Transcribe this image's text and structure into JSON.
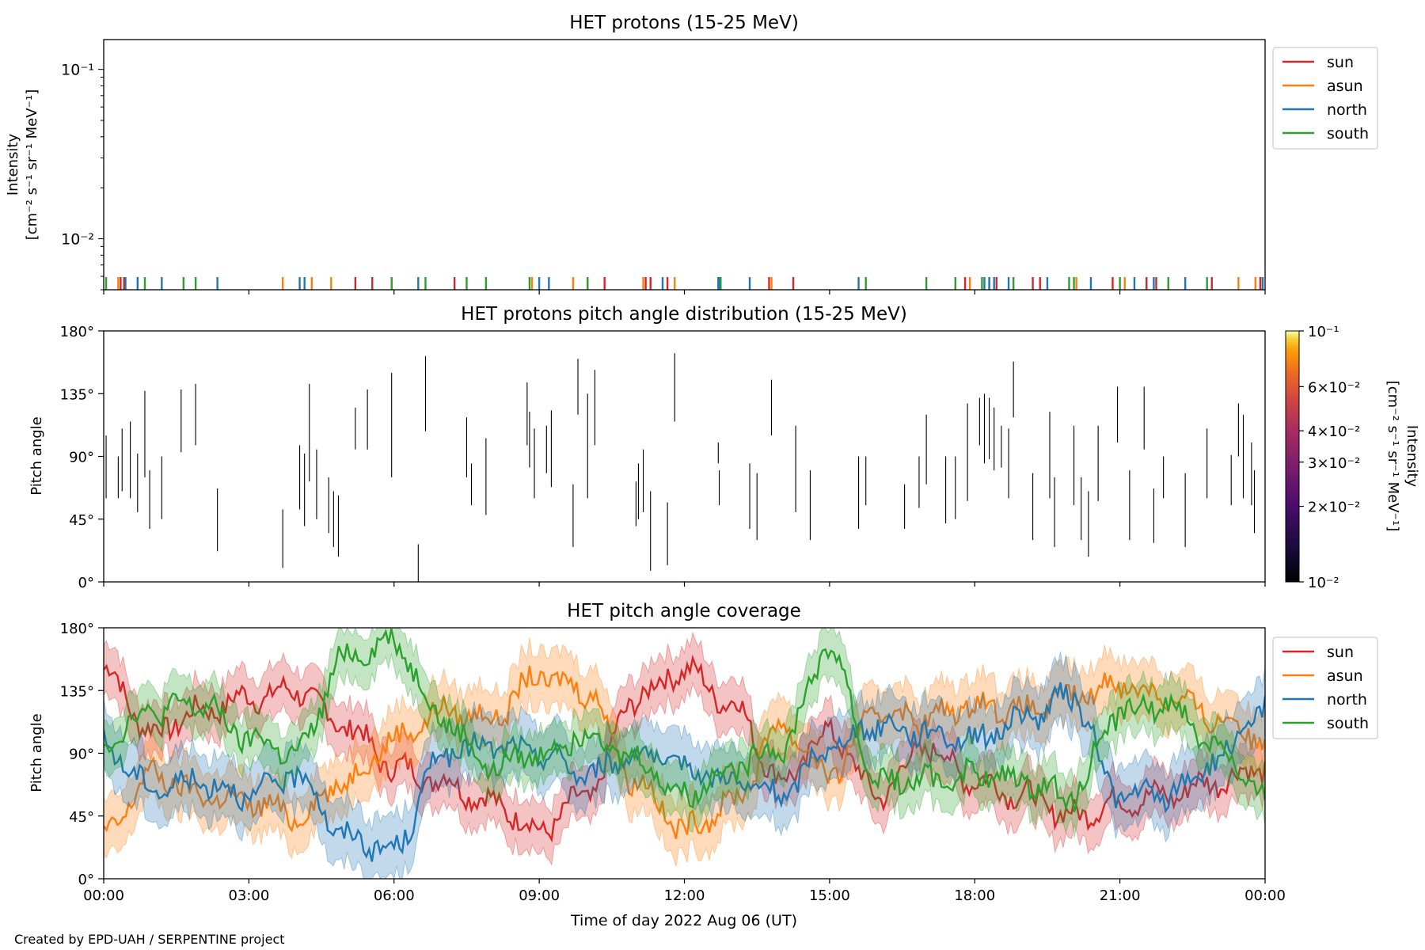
{
  "credit": "Created by EPD-UAH / SERPENTINE project",
  "colors": {
    "sun": "#d62728",
    "asun": "#ff7f0e",
    "north": "#1f77b4",
    "south": "#2ca02c"
  },
  "chart_data": [
    {
      "type": "line",
      "title": "HET protons (15-25 MeV)",
      "ylabel": "Intensity",
      "ylabel_unit": "[cm⁻² s⁻¹ sr⁻¹ MeV⁻¹]",
      "yscale": "log",
      "ylim": [
        0.005,
        0.15
      ],
      "yticks": [
        {
          "value": 0.1,
          "label": "10⁻¹"
        },
        {
          "value": 0.01,
          "label": "10⁻²"
        }
      ],
      "xlim": [
        "00:00",
        "24:00"
      ],
      "legend": {
        "position": "right",
        "entries": [
          "sun",
          "asun",
          "north",
          "south"
        ]
      },
      "series": [
        {
          "name": "sun",
          "ticks_hours": [
            0.35,
            0.42,
            5.2,
            5.55,
            7.25,
            10.35,
            11.2,
            11.3,
            11.65,
            13.75,
            14.25,
            17.8,
            18.45,
            19.2,
            19.35,
            20.85,
            21.55,
            21.75,
            22.9,
            23.9,
            23.95
          ]
        },
        {
          "name": "asun",
          "ticks_hours": [
            0.3,
            3.7,
            4.3,
            4.7,
            5.95,
            8.85,
            9.7,
            10.0,
            11.15,
            11.8,
            13.8,
            17.9,
            18.3,
            20.1,
            21.1,
            23.45,
            23.8
          ]
        },
        {
          "name": "north",
          "ticks_hours": [
            0.45,
            0.7,
            1.2,
            2.35,
            4.05,
            4.15,
            6.5,
            9.0,
            9.2,
            11.55,
            12.7,
            12.72,
            13.35,
            15.6,
            18.2,
            18.3,
            18.4,
            18.7,
            19.5,
            20.4,
            21.3,
            21.7,
            22.35,
            23.95
          ]
        },
        {
          "name": "south",
          "ticks_hours": [
            0.05,
            0.85,
            1.65,
            1.9,
            5.95,
            6.65,
            7.5,
            7.9,
            8.8,
            10.0,
            12.75,
            15.75,
            17.0,
            17.6,
            18.15,
            18.8,
            19.95,
            20.05,
            21.0,
            22.0,
            22.8
          ]
        }
      ]
    },
    {
      "type": "heatmap",
      "title": "HET protons pitch angle distribution (15-25 MeV)",
      "ylabel": "Pitch angle",
      "ylim": [
        0,
        180
      ],
      "yticks": [
        "0°",
        "45°",
        "90°",
        "135°",
        "180°"
      ],
      "xlim": [
        "00:00",
        "24:00"
      ],
      "colorbar": {
        "label": "Intensity",
        "unit": "[cm⁻² s⁻¹ sr⁻¹ MeV⁻¹]",
        "scale": "log",
        "range": [
          0.01,
          0.1
        ],
        "colormap": "inferno",
        "ticks": [
          {
            "value": 0.1,
            "label": "10⁻¹"
          },
          {
            "value": 0.06,
            "label": "6×10⁻²"
          },
          {
            "value": 0.04,
            "label": "4×10⁻²"
          },
          {
            "value": 0.03,
            "label": "3×10⁻²"
          },
          {
            "value": 0.02,
            "label": "2×10⁻²"
          },
          {
            "value": 0.01,
            "label": "10⁻²"
          }
        ]
      },
      "segments": [
        [
          0.05,
          60,
          105
        ],
        [
          0.3,
          60,
          90
        ],
        [
          0.38,
          65,
          110
        ],
        [
          0.55,
          60,
          115
        ],
        [
          0.7,
          50,
          92
        ],
        [
          0.85,
          75,
          137
        ],
        [
          0.95,
          38,
          80
        ],
        [
          1.2,
          45,
          90
        ],
        [
          1.6,
          93,
          138
        ],
        [
          1.9,
          98,
          142
        ],
        [
          2.35,
          22,
          67
        ],
        [
          3.7,
          10,
          52
        ],
        [
          4.05,
          52,
          98
        ],
        [
          4.15,
          40,
          92
        ],
        [
          4.25,
          72,
          142
        ],
        [
          4.4,
          45,
          95
        ],
        [
          4.65,
          35,
          75
        ],
        [
          4.75,
          25,
          65
        ],
        [
          4.85,
          18,
          62
        ],
        [
          5.2,
          95,
          125
        ],
        [
          5.45,
          95,
          138
        ],
        [
          5.95,
          75,
          150
        ],
        [
          6.5,
          0,
          27
        ],
        [
          6.65,
          108,
          162
        ],
        [
          7.5,
          75,
          118
        ],
        [
          7.6,
          55,
          85
        ],
        [
          7.9,
          48,
          103
        ],
        [
          8.75,
          98,
          143
        ],
        [
          8.8,
          82,
          122
        ],
        [
          8.9,
          60,
          110
        ],
        [
          9.15,
          78,
          112
        ],
        [
          9.25,
          68,
          123
        ],
        [
          9.7,
          25,
          70
        ],
        [
          9.8,
          120,
          160
        ],
        [
          10.0,
          60,
          135
        ],
        [
          10.15,
          98,
          152
        ],
        [
          11.0,
          40,
          72
        ],
        [
          11.05,
          45,
          85
        ],
        [
          11.15,
          50,
          95
        ],
        [
          11.3,
          8,
          65
        ],
        [
          11.65,
          12,
          57
        ],
        [
          11.8,
          115,
          164
        ],
        [
          12.7,
          85,
          100
        ],
        [
          12.72,
          55,
          80
        ],
        [
          13.35,
          38,
          85
        ],
        [
          13.5,
          30,
          78
        ],
        [
          13.8,
          105,
          145
        ],
        [
          14.3,
          50,
          112
        ],
        [
          14.6,
          30,
          80
        ],
        [
          15.6,
          38,
          90
        ],
        [
          15.75,
          55,
          90
        ],
        [
          16.55,
          38,
          70
        ],
        [
          16.85,
          53,
          90
        ],
        [
          17.0,
          70,
          120
        ],
        [
          17.4,
          42,
          90
        ],
        [
          17.6,
          45,
          90
        ],
        [
          17.85,
          58,
          128
        ],
        [
          18.1,
          98,
          132
        ],
        [
          18.2,
          85,
          135
        ],
        [
          18.3,
          88,
          132
        ],
        [
          18.4,
          80,
          125
        ],
        [
          18.55,
          82,
          112
        ],
        [
          18.7,
          60,
          110
        ],
        [
          18.8,
          118,
          158
        ],
        [
          19.2,
          30,
          78
        ],
        [
          19.55,
          60,
          122
        ],
        [
          19.65,
          25,
          75
        ],
        [
          20.05,
          55,
          112
        ],
        [
          20.2,
          30,
          75
        ],
        [
          20.35,
          18,
          65
        ],
        [
          20.55,
          58,
          112
        ],
        [
          20.95,
          100,
          140
        ],
        [
          21.2,
          30,
          80
        ],
        [
          21.5,
          95,
          140
        ],
        [
          21.7,
          28,
          67
        ],
        [
          21.9,
          60,
          90
        ],
        [
          22.35,
          25,
          78
        ],
        [
          22.8,
          60,
          110
        ],
        [
          23.3,
          55,
          91
        ],
        [
          23.45,
          90,
          128
        ],
        [
          23.55,
          60,
          120
        ],
        [
          23.72,
          55,
          100
        ],
        [
          23.78,
          35,
          80
        ]
      ]
    },
    {
      "type": "area",
      "title": "HET pitch angle coverage",
      "ylabel": "Pitch angle",
      "xlabel": "Time of day 2022 Aug 06 (UT)",
      "ylim": [
        0,
        180
      ],
      "yticks": [
        "0°",
        "45°",
        "90°",
        "135°",
        "180°"
      ],
      "xticks": [
        "00:00",
        "03:00",
        "06:00",
        "09:00",
        "12:00",
        "15:00",
        "18:00",
        "21:00",
        "00:00"
      ],
      "legend": {
        "position": "right",
        "entries": [
          "sun",
          "asun",
          "north",
          "south"
        ]
      },
      "x_hours": [
        0,
        1,
        2,
        3,
        4,
        5,
        6,
        7,
        8,
        9,
        10,
        11,
        12,
        13,
        14,
        15,
        16,
        17,
        18,
        19,
        20,
        21,
        22,
        23,
        24
      ],
      "series": [
        {
          "name": "sun",
          "band_halfwidth": 18,
          "values": [
            150,
            105,
            120,
            130,
            135,
            110,
            80,
            70,
            55,
            35,
            60,
            130,
            150,
            125,
            70,
            105,
            60,
            95,
            70,
            60,
            45,
            55,
            60,
            70,
            80
          ]
        },
        {
          "name": "asun",
          "band_halfwidth": 20,
          "values": [
            30,
            75,
            60,
            55,
            45,
            70,
            100,
            120,
            115,
            145,
            135,
            70,
            35,
            55,
            110,
            75,
            120,
            115,
            125,
            120,
            130,
            140,
            130,
            115,
            100
          ]
        },
        {
          "name": "north",
          "band_halfwidth": 22,
          "values": [
            95,
            65,
            70,
            60,
            75,
            30,
            20,
            90,
            95,
            90,
            75,
            90,
            80,
            70,
            60,
            95,
            110,
            105,
            100,
            115,
            130,
            60,
            60,
            85,
            120
          ]
        },
        {
          "name": "south",
          "band_halfwidth": 18,
          "values": [
            100,
            120,
            125,
            100,
            90,
            160,
            170,
            115,
            80,
            90,
            105,
            85,
            60,
            80,
            95,
            165,
            70,
            70,
            75,
            70,
            60,
            120,
            125,
            95,
            55
          ]
        }
      ]
    }
  ]
}
